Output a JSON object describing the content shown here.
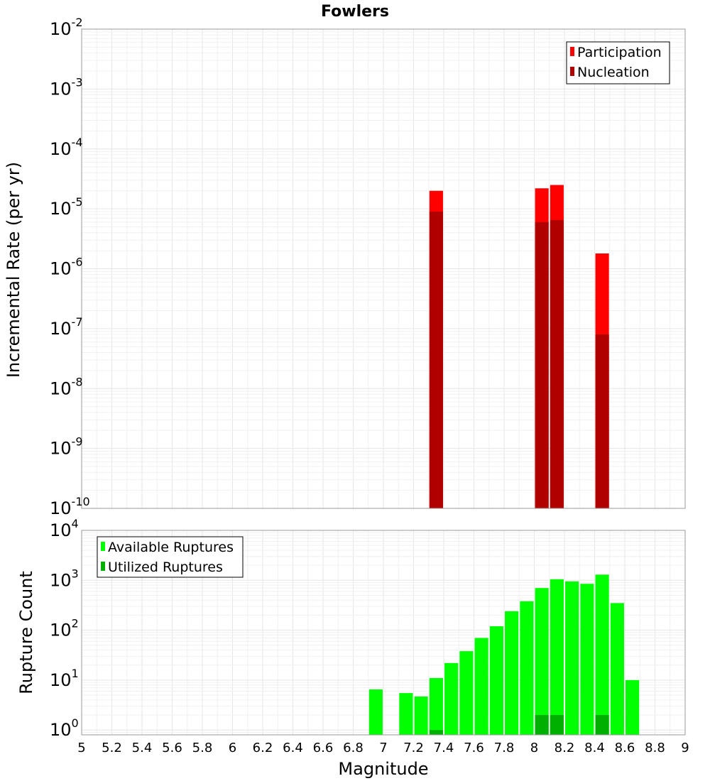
{
  "chart_data": [
    {
      "type": "bar",
      "title": "Fowlers",
      "xlabel": "",
      "ylabel": "Incremental Rate (per yr)",
      "yscale": "log",
      "ylim": [
        1e-10,
        0.01
      ],
      "xlim": [
        5,
        9
      ],
      "y_tick_exponents": [
        "-10",
        "-9",
        "-8",
        "-7",
        "-6",
        "-5",
        "-4",
        "-3",
        "-2"
      ],
      "y_tick_base": "10",
      "legend_position": "top-right",
      "series": [
        {
          "name": "Participation",
          "color": "#ff0000",
          "x": [
            7.35,
            8.05,
            8.15,
            8.45
          ],
          "values": [
            2e-05,
            2.2e-05,
            2.5e-05,
            1.8e-06
          ]
        },
        {
          "name": "Nucleation",
          "color": "#b00000",
          "x": [
            7.35,
            8.05,
            8.15,
            8.45
          ],
          "values": [
            9e-06,
            6e-06,
            6.5e-06,
            8e-08
          ]
        }
      ]
    },
    {
      "type": "bar",
      "title": "",
      "xlabel": "Magnitude",
      "ylabel": "Rupture Count",
      "yscale": "log",
      "ylim": [
        0.8,
        10000
      ],
      "xlim": [
        5,
        9
      ],
      "x_ticks": [
        "5",
        "5.2",
        "5.4",
        "5.6",
        "5.8",
        "6",
        "6.2",
        "6.4",
        "6.6",
        "6.8",
        "7",
        "7.2",
        "7.4",
        "7.6",
        "7.8",
        "8",
        "8.2",
        "8.4",
        "8.6",
        "8.8",
        "9"
      ],
      "y_tick_exponents": [
        "0",
        "1",
        "2",
        "3",
        "4"
      ],
      "y_tick_base": "10",
      "legend_position": "top-left",
      "series": [
        {
          "name": "Available Ruptures",
          "color": "#00ff00",
          "x": [
            6.95,
            7.15,
            7.25,
            7.35,
            7.45,
            7.55,
            7.65,
            7.75,
            7.85,
            7.95,
            8.05,
            8.15,
            8.25,
            8.35,
            8.45,
            8.55,
            8.65
          ],
          "values": [
            6.5,
            5.5,
            4.7,
            11,
            22,
            38,
            70,
            120,
            240,
            380,
            700,
            1050,
            950,
            850,
            1300,
            350,
            10
          ]
        },
        {
          "name": "Utilized Ruptures",
          "color": "#00b000",
          "x": [
            7.35,
            8.05,
            8.15,
            8.45
          ],
          "values": [
            1,
            2,
            2,
            2
          ]
        }
      ]
    }
  ]
}
